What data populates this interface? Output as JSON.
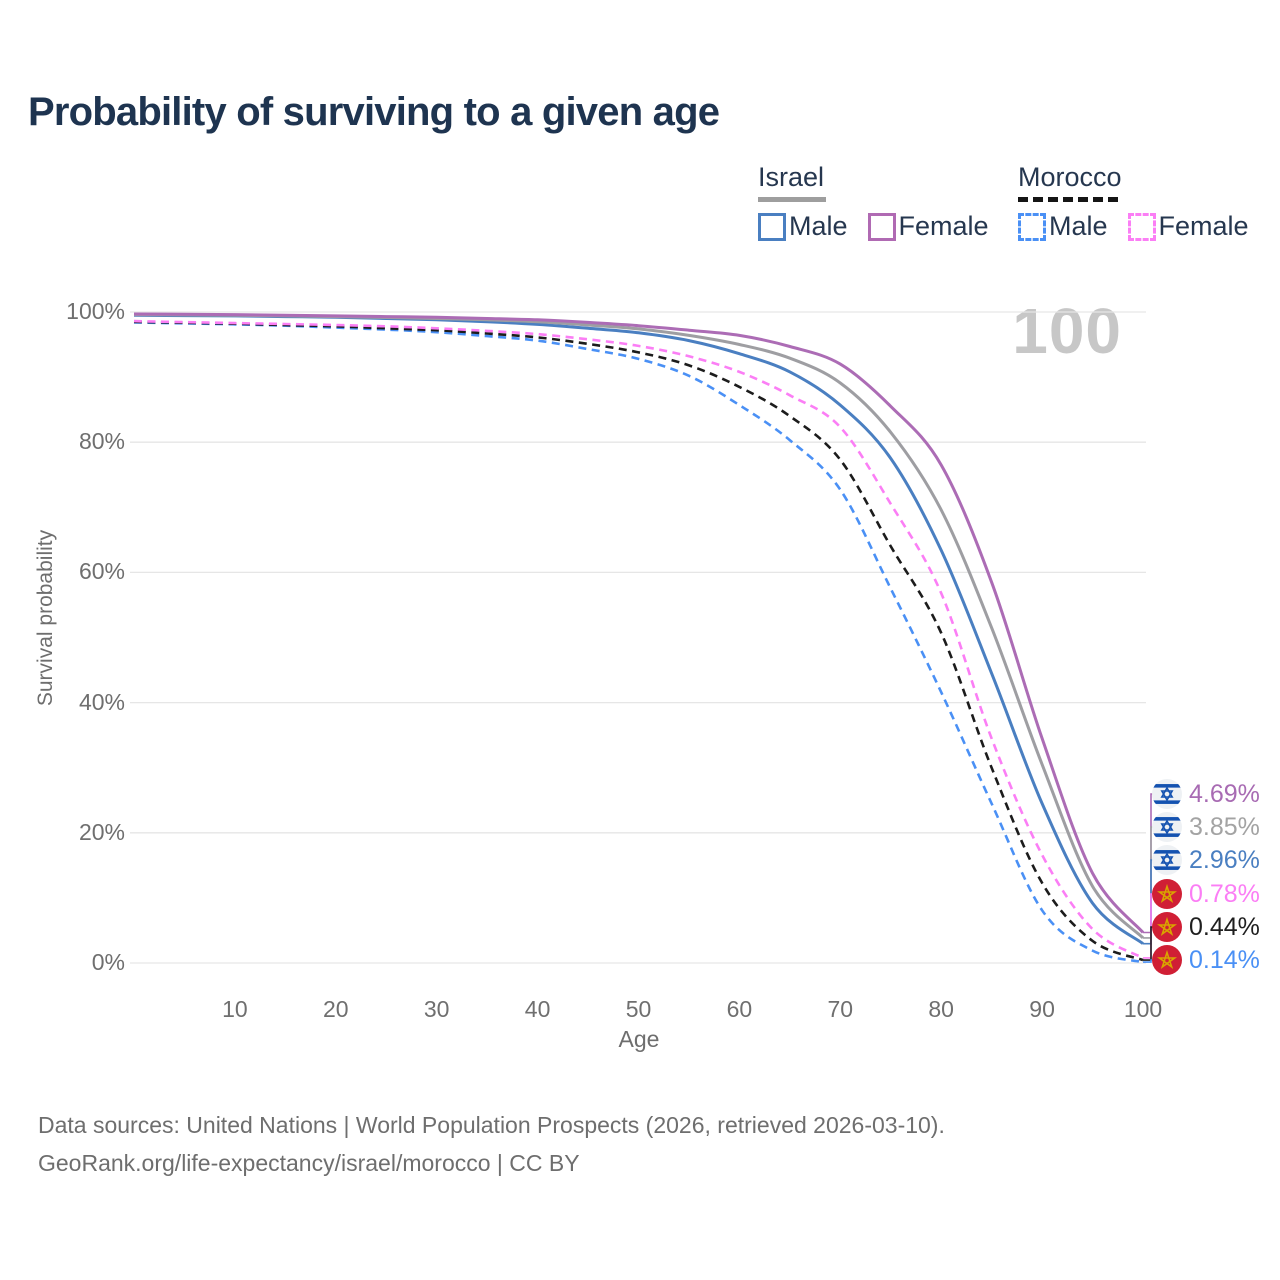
{
  "title": "Probability of surviving to a given age",
  "watermark": "100",
  "legend": {
    "groups": [
      {
        "label": "Israel",
        "swatch": {
          "style": "solid",
          "color": "#9e9e9e"
        },
        "items": [
          {
            "label": "Male",
            "color": "#4a7fc1",
            "style": "solid"
          },
          {
            "label": "Female",
            "color": "#b06ab3",
            "style": "solid"
          }
        ]
      },
      {
        "label": "Morocco",
        "swatch": {
          "style": "dashed",
          "color": "#151515"
        },
        "items": [
          {
            "label": "Male",
            "color": "#4a90f5",
            "style": "dashed"
          },
          {
            "label": "Female",
            "color": "#fb7ef5",
            "style": "dashed"
          }
        ]
      }
    ]
  },
  "chart_data": {
    "type": "line",
    "title": "Probability of surviving to a given age",
    "xlabel": "Age",
    "ylabel": "Survival probability",
    "xlim": [
      0,
      100
    ],
    "ylim": [
      0,
      100
    ],
    "grid": "horizontal",
    "x_ticks": [
      10,
      20,
      30,
      40,
      50,
      60,
      70,
      80,
      90,
      100
    ],
    "y_ticks": [
      {
        "value": 0,
        "label": "0%"
      },
      {
        "value": 20,
        "label": "20%"
      },
      {
        "value": 40,
        "label": "40%"
      },
      {
        "value": 60,
        "label": "60%"
      },
      {
        "value": 80,
        "label": "80%"
      },
      {
        "value": 100,
        "label": "100%"
      }
    ],
    "ages": [
      0,
      5,
      10,
      15,
      20,
      25,
      30,
      35,
      40,
      45,
      50,
      55,
      60,
      65,
      70,
      75,
      80,
      85,
      90,
      95,
      100
    ],
    "series": [
      {
        "name": "Israel Female",
        "country": "Israel",
        "sex": "Female",
        "flag": "israel",
        "color": "#ac6cb5",
        "label_color": "#a86bb3",
        "style": "solid",
        "end_label": "4.69%",
        "values": [
          99.7,
          99.65,
          99.6,
          99.5,
          99.4,
          99.3,
          99.2,
          99.0,
          98.8,
          98.4,
          97.9,
          97.2,
          96.4,
          94.7,
          92.0,
          85.5,
          76.5,
          58.5,
          34.5,
          13.8,
          4.69
        ]
      },
      {
        "name": "Israel",
        "country": "Israel",
        "sex": "Both",
        "flag": "israel",
        "color": "#9e9ea2",
        "label_color": "#a3a3a3",
        "style": "solid",
        "end_label": "3.85%",
        "values": [
          99.6,
          99.55,
          99.5,
          99.4,
          99.3,
          99.15,
          99.0,
          98.8,
          98.5,
          98.0,
          97.4,
          96.4,
          95.0,
          92.9,
          89.1,
          81.5,
          69.6,
          51.5,
          30.5,
          11.8,
          3.85
        ]
      },
      {
        "name": "Israel Male",
        "country": "Israel",
        "sex": "Male",
        "flag": "israel",
        "color": "#4a7fc1",
        "label_color": "#4a7fc1",
        "style": "solid",
        "end_label": "2.96%",
        "values": [
          99.5,
          99.45,
          99.4,
          99.3,
          99.2,
          99.0,
          98.8,
          98.5,
          98.1,
          97.5,
          96.8,
          95.6,
          93.6,
          90.8,
          85.7,
          77.5,
          63.4,
          44.5,
          24.5,
          9.2,
          2.96
        ]
      },
      {
        "name": "Morocco Female",
        "country": "Morocco",
        "sex": "Female",
        "flag": "morocco",
        "color": "#fb7ef5",
        "label_color": "#fb7ef5",
        "style": "dashed",
        "end_label": "0.78%",
        "values": [
          98.6,
          98.45,
          98.3,
          98.15,
          98.0,
          97.8,
          97.5,
          97.1,
          96.6,
          95.8,
          94.8,
          93.2,
          90.8,
          87.2,
          82.3,
          70.5,
          56.8,
          34.5,
          16.6,
          5.2,
          0.78
        ]
      },
      {
        "name": "Morocco",
        "country": "Morocco",
        "sex": "Both",
        "flag": "morocco",
        "color": "#1c1c1c",
        "label_color": "#1f1f1f",
        "style": "dashed",
        "end_label": "0.44%",
        "values": [
          98.5,
          98.35,
          98.2,
          98.0,
          97.8,
          97.5,
          97.2,
          96.7,
          96.1,
          95.1,
          93.8,
          91.8,
          88.5,
          84.0,
          77.3,
          64.0,
          50.7,
          30.0,
          12.3,
          3.4,
          0.44
        ]
      },
      {
        "name": "Morocco Male",
        "country": "Morocco",
        "sex": "Male",
        "flag": "morocco",
        "color": "#4a90f5",
        "label_color": "#4a90f5",
        "style": "dashed",
        "end_label": "0.14%",
        "values": [
          98.4,
          98.25,
          98.1,
          97.9,
          97.6,
          97.3,
          96.9,
          96.3,
          95.6,
          94.3,
          92.8,
          90.2,
          85.7,
          80.3,
          72.7,
          57.5,
          41.6,
          24.5,
          8.1,
          1.9,
          0.14
        ]
      }
    ]
  },
  "footer": {
    "line1": "Data sources: United Nations | World Population Prospects (2026, retrieved 2026-03-10).",
    "line2": "GeoRank.org/life-expectancy/israel/morocco | CC BY"
  }
}
